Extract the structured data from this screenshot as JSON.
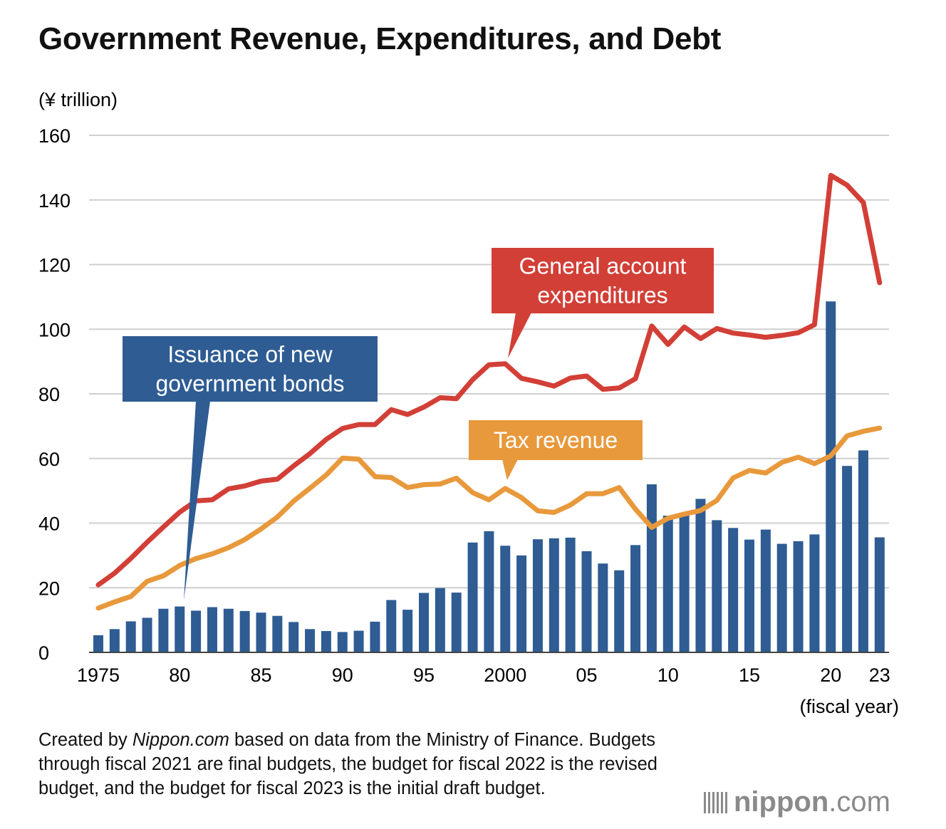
{
  "title": "Government Revenue, Expenditures, and Debt",
  "footnote": {
    "prefix": "Created by ",
    "source_name": "Nippon.com",
    "suffix": " based on data from the Ministry of Finance. Budgets through fiscal 2021 are final budgets, the budget for fiscal 2022 is the revised budget, and the budget for fiscal 2023 is the initial draft budget."
  },
  "logo": {
    "brand": "nippon",
    "tld": ".com"
  },
  "colors": {
    "expenditures": "#d23f37",
    "tax": "#e8993c",
    "bonds": "#2e5c93",
    "grid": "#cfcfcf"
  },
  "chart_data": {
    "type": "bar+line",
    "title": "Government Revenue, Expenditures, and Debt",
    "ylabel": "(¥ trillion)",
    "xlabel": "(fiscal year)",
    "ylim": [
      0,
      160
    ],
    "yticks": [
      0,
      20,
      40,
      60,
      80,
      100,
      120,
      140,
      160
    ],
    "x": [
      1975,
      1976,
      1977,
      1978,
      1979,
      1980,
      1981,
      1982,
      1983,
      1984,
      1985,
      1986,
      1987,
      1988,
      1989,
      1990,
      1991,
      1992,
      1993,
      1994,
      1995,
      1996,
      1997,
      1998,
      1999,
      2000,
      2001,
      2002,
      2003,
      2004,
      2005,
      2006,
      2007,
      2008,
      2009,
      2010,
      2011,
      2012,
      2013,
      2014,
      2015,
      2016,
      2017,
      2018,
      2019,
      2020,
      2021,
      2022,
      2023
    ],
    "xticks": [
      {
        "year": 1975,
        "label": "1975"
      },
      {
        "year": 1980,
        "label": "80"
      },
      {
        "year": 1985,
        "label": "85"
      },
      {
        "year": 1990,
        "label": "90"
      },
      {
        "year": 1995,
        "label": "95"
      },
      {
        "year": 2000,
        "label": "2000"
      },
      {
        "year": 2005,
        "label": "05"
      },
      {
        "year": 2010,
        "label": "10"
      },
      {
        "year": 2015,
        "label": "15"
      },
      {
        "year": 2020,
        "label": "20"
      },
      {
        "year": 2023,
        "label": "23"
      }
    ],
    "series": [
      {
        "name": "Issuance of new government bonds",
        "label_lines": [
          "Issuance of new",
          "government bonds"
        ],
        "kind": "bar",
        "values": [
          5.3,
          7.2,
          9.6,
          10.7,
          13.5,
          14.2,
          12.9,
          14.0,
          13.5,
          12.8,
          12.3,
          11.3,
          9.4,
          7.2,
          6.6,
          6.3,
          6.7,
          9.5,
          16.2,
          13.2,
          18.4,
          19.9,
          18.5,
          34.0,
          37.5,
          33.0,
          30.0,
          35.0,
          35.3,
          35.5,
          31.3,
          27.5,
          25.4,
          33.2,
          52.0,
          42.3,
          42.8,
          47.5,
          40.9,
          38.5,
          34.9,
          38.0,
          33.6,
          34.4,
          36.5,
          108.6,
          57.7,
          62.5,
          35.6
        ]
      },
      {
        "name": "General account expenditures",
        "label_lines": [
          "General account",
          "expenditures"
        ],
        "kind": "line",
        "values": [
          20.9,
          24.5,
          29.1,
          34.1,
          38.8,
          43.4,
          46.9,
          47.2,
          50.6,
          51.5,
          53.0,
          53.6,
          57.7,
          61.5,
          65.9,
          69.3,
          70.5,
          70.5,
          75.1,
          73.6,
          75.9,
          78.8,
          78.5,
          84.4,
          89.0,
          89.3,
          84.8,
          83.7,
          82.4,
          84.9,
          85.5,
          81.4,
          81.8,
          84.7,
          101.0,
          95.3,
          100.7,
          97.1,
          100.2,
          98.8,
          98.2,
          97.5,
          98.1,
          98.9,
          101.4,
          147.6,
          144.6,
          139.2,
          114.4
        ]
      },
      {
        "name": "Tax revenue",
        "label_lines": [
          "Tax revenue"
        ],
        "kind": "line",
        "values": [
          13.7,
          15.6,
          17.3,
          22.0,
          23.7,
          26.9,
          29.0,
          30.5,
          32.4,
          34.9,
          38.2,
          41.9,
          46.8,
          50.8,
          54.9,
          60.1,
          59.8,
          54.4,
          54.1,
          51.0,
          51.9,
          52.1,
          53.9,
          49.4,
          47.2,
          50.7,
          47.9,
          43.8,
          43.3,
          45.6,
          49.1,
          49.1,
          51.0,
          44.3,
          38.7,
          41.5,
          42.8,
          43.9,
          47.0,
          54.0,
          56.3,
          55.5,
          58.8,
          60.4,
          58.4,
          60.8,
          67.0,
          68.4,
          69.4
        ]
      }
    ]
  }
}
